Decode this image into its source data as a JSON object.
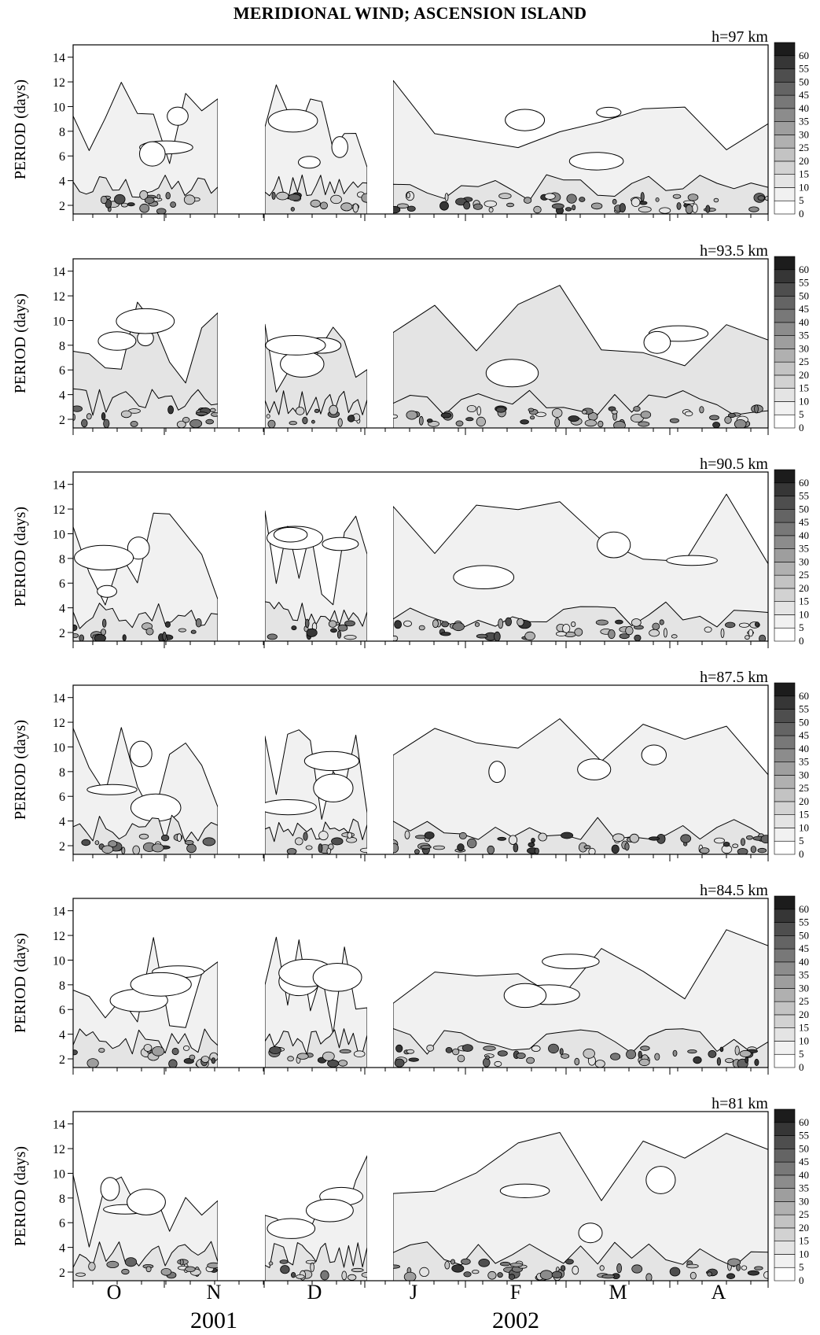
{
  "chart_data": {
    "type": "heatmap",
    "title": "MERIDIONAL WIND;  ASCENSION ISLAND",
    "ylabel": "PERIOD  (days)",
    "ylim": [
      1.3,
      15
    ],
    "yticks": [
      2,
      4,
      6,
      8,
      10,
      12,
      14
    ],
    "colorbar": {
      "levels": [
        0,
        5,
        10,
        15,
        20,
        25,
        30,
        35,
        40,
        45,
        50,
        55,
        60
      ],
      "colors": [
        "#ffffff",
        "#f1f1f1",
        "#e4e4e4",
        "#d2d2d2",
        "#c3c3c3",
        "#b0b0b0",
        "#9e9e9e",
        "#8c8c8c",
        "#787878",
        "#646464",
        "#4e4e4e",
        "#363636",
        "#1c1c1c"
      ]
    },
    "months": [
      "O",
      "N",
      "D",
      "J",
      "F",
      "M",
      "A"
    ],
    "years": [
      "2001",
      "2002"
    ],
    "panels": [
      {
        "height_label": "h=97 km",
        "band_level": 2,
        "broad_level": 1
      },
      {
        "height_label": "h=93.5 km",
        "band_level": 2,
        "broad_level": 2
      },
      {
        "height_label": "h=90.5 km",
        "band_level": 2,
        "broad_level": 1
      },
      {
        "height_label": "h=87.5 km",
        "band_level": 2,
        "broad_level": 1
      },
      {
        "height_label": "h=84.5 km",
        "band_level": 2,
        "broad_level": 1
      },
      {
        "height_label": "h=81 km",
        "band_level": 2,
        "broad_level": 1
      }
    ]
  }
}
